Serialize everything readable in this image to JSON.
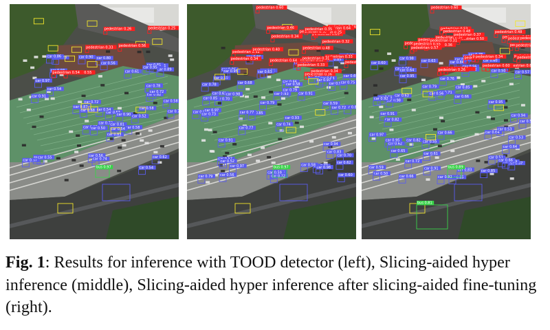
{
  "figure": {
    "panels": [
      {
        "id": "left",
        "labels": {
          "car": "car",
          "bus": "bus",
          "pedestrian": "pedestrian"
        }
      },
      {
        "id": "middle",
        "labels": {
          "car": "car",
          "bus": "bus",
          "pedestrian": "pedestrian"
        }
      },
      {
        "id": "right",
        "labels": {
          "car": "car",
          "bus": "bus",
          "pedestrian": "pedestrian"
        }
      }
    ],
    "sample_labels": {
      "left_bus": "bus 0.97",
      "middle_bus": "bus 0.97",
      "right_bus": "bus 0.89",
      "right_bus2": "bus 0.81",
      "ped_top": "pedestrian 0.60"
    },
    "colors": {
      "car_box": "#5a5cf0",
      "pedestrian_box": "#ff2020",
      "bus_box": "#39d24a",
      "truck_box": "#f2e52b"
    }
  },
  "caption": {
    "label": "Fig. 1",
    "text": ":  Results for inference with TOOD detector (left), Slicing-aided hyper inference (middle), Slicing-aided hyper inference after slicing-aided fine-tuning (right)."
  }
}
